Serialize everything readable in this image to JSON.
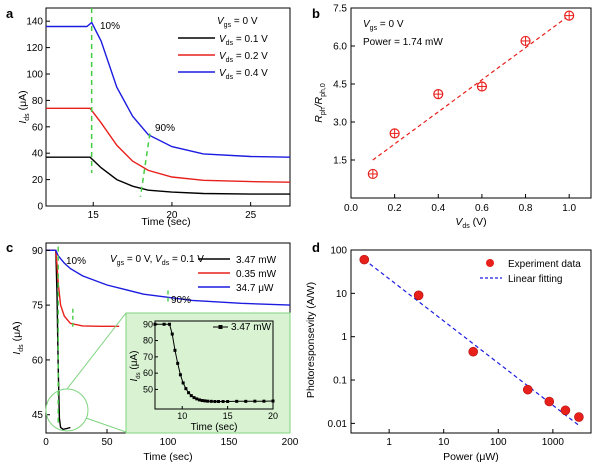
{
  "chart_data": [
    {
      "panel": "a",
      "type": "line",
      "xlabel": "Time (sec)",
      "ylabel": "I_ds (μA)",
      "xlim": [
        12,
        27.5
      ],
      "ylim": [
        0,
        150
      ],
      "xticks": [
        "15",
        "20",
        "25"
      ],
      "yticks": [
        "0",
        "20",
        "40",
        "60",
        "80",
        "100",
        "120",
        "140"
      ],
      "legend_title": "V_gs = 0 V",
      "legend_position": "top-right",
      "annotations": [
        "10%",
        "90%"
      ],
      "series": [
        {
          "name": "V_ds = 0.1 V",
          "color": "#000000",
          "x": [
            12,
            14.8,
            15.5,
            16.5,
            17.5,
            18.5,
            20,
            22,
            25,
            27.5
          ],
          "y": [
            37,
            37,
            29,
            20,
            15,
            12,
            10.5,
            9.5,
            9,
            9
          ]
        },
        {
          "name": "V_ds = 0.2 V",
          "color": "#e8201c",
          "x": [
            12,
            14.8,
            15.5,
            16.5,
            17.5,
            18.5,
            20,
            22,
            25,
            27.5
          ],
          "y": [
            74,
            74,
            63,
            46,
            34,
            27,
            22,
            19.5,
            18.5,
            18
          ]
        },
        {
          "name": "V_ds = 0.4 V",
          "color": "#1c1ce0",
          "x": [
            12,
            14.6,
            14.9,
            15.5,
            16.5,
            17.5,
            18.5,
            20,
            22,
            25,
            27.5
          ],
          "y": [
            136,
            136,
            139,
            125,
            90,
            68,
            54,
            45,
            39.5,
            37.5,
            37
          ]
        }
      ],
      "markers_10pct": [
        {
          "x": 14.9,
          "y": 150
        },
        {
          "x": 14.9,
          "y": 25
        }
      ],
      "markers_90pct": [
        {
          "x": 18.6,
          "y": 55
        },
        {
          "x": 18,
          "y": 7
        }
      ]
    },
    {
      "panel": "b",
      "type": "scatter",
      "xlabel": "V_ds (V)",
      "ylabel": "R_ph / R_ph,0",
      "xlim": [
        0,
        1.1
      ],
      "ylim": [
        0,
        7.5
      ],
      "xticks": [
        "0.0",
        "0.2",
        "0.4",
        "0.6",
        "0.8",
        "1.0"
      ],
      "yticks": [
        "1.5",
        "3.0",
        "4.5",
        "6.0",
        "7.5"
      ],
      "annotations": [
        "V_gs = 0 V",
        "Power = 1.74 mW"
      ],
      "series": [
        {
          "name": "data",
          "color": "#e8201c",
          "x": [
            0.1,
            0.2,
            0.4,
            0.6,
            0.8,
            1.0
          ],
          "y": [
            0.95,
            2.55,
            4.1,
            4.4,
            6.2,
            7.2
          ]
        }
      ],
      "fit": {
        "x": [
          0.1,
          1.0
        ],
        "y": [
          1.5,
          7.2
        ],
        "color": "#e8201c"
      }
    },
    {
      "panel": "c",
      "type": "line",
      "xlabel": "Time (sec)",
      "ylabel": "I_ds (μA)",
      "xlim": [
        0,
        200
      ],
      "ylim": [
        40,
        92
      ],
      "xticks": [
        "0",
        "50",
        "100",
        "150",
        "200"
      ],
      "yticks": [
        "45",
        "60",
        "75",
        "90"
      ],
      "legend_title": "V_gs = 0 V, V_ds = 0.1 V",
      "legend_position": "top-right",
      "annotations": [
        "10%",
        "90%"
      ],
      "series": [
        {
          "name": "3.47 mW",
          "color": "#000000",
          "x": [
            0,
            8,
            9,
            10,
            11,
            12,
            14,
            17,
            20
          ],
          "y": [
            90,
            90,
            78,
            58,
            44,
            41.5,
            41,
            41.2,
            41.5
          ]
        },
        {
          "name": "0.35 mW",
          "color": "#e8201c",
          "x": [
            0,
            8,
            9,
            10,
            12,
            15,
            20,
            30,
            45,
            60
          ],
          "y": [
            90,
            90,
            86,
            81,
            75,
            72,
            70,
            69.3,
            69.2,
            69.2
          ]
        },
        {
          "name": "34.7 μW",
          "color": "#1c1ce0",
          "x": [
            0,
            8,
            10,
            15,
            20,
            30,
            50,
            80,
            120,
            160,
            200
          ],
          "y": [
            90,
            90,
            88.5,
            86.5,
            85,
            83,
            80.5,
            78,
            76.3,
            75.5,
            75
          ]
        }
      ],
      "inset": {
        "xlabel": "Time (sec)",
        "ylabel": "I_ds (μA)",
        "xlim": [
          7,
          20
        ],
        "ylim": [
          38,
          92
        ],
        "xticks": [
          "10",
          "15",
          "20"
        ],
        "yticks": [
          "50",
          "60",
          "70",
          "80",
          "90"
        ],
        "legend": "3.47 mW",
        "series": {
          "color": "#000000",
          "x": [
            7,
            8,
            8.6,
            8.9,
            9.2,
            9.5,
            9.8,
            10.1,
            10.4,
            10.7,
            11.0,
            11.3,
            11.6,
            11.9,
            12.2,
            12.5,
            12.8,
            13.2,
            13.6,
            14,
            14.5,
            15,
            16,
            17,
            18,
            19,
            20
          ],
          "y": [
            90,
            90,
            90,
            84,
            74,
            66,
            59,
            54,
            50.5,
            48,
            46.2,
            45,
            44.2,
            43.6,
            43.2,
            43,
            42.8,
            42.7,
            42.6,
            42.6,
            42.6,
            42.6,
            42.7,
            42.7,
            42.8,
            42.8,
            42.9
          ]
        }
      }
    },
    {
      "panel": "d",
      "type": "scatter",
      "xlabel": "Power (μW)",
      "ylabel": "Photoresponsevity (A/W)",
      "x_scale": "log",
      "y_scale": "log",
      "xlim": [
        0.2,
        5000
      ],
      "ylim": [
        0.006,
        100
      ],
      "xticks": [
        "1",
        "10",
        "100",
        "1000"
      ],
      "yticks": [
        "0.01",
        "0.1",
        "1",
        "10",
        "100"
      ],
      "legend_position": "top-right",
      "series": [
        {
          "name": "Experiment data",
          "color": "#e8201c",
          "x": [
            0.35,
            3.47,
            34.7,
            347,
            860,
            1700,
            3000
          ],
          "y": [
            60,
            9,
            0.45,
            0.06,
            0.032,
            0.02,
            0.014
          ]
        }
      ],
      "fit": {
        "name": "Linear fitting",
        "color": "#1c1ce0",
        "x": [
          0.35,
          3000
        ],
        "y": [
          60,
          0.009
        ]
      }
    }
  ],
  "panels": {
    "a": {
      "label": "a",
      "legend_title": "V_gs = 0 V",
      "legend": [
        "V_ds = 0.1 V",
        "V_ds = 0.2 V",
        "V_ds = 0.4 V"
      ],
      "xlabel": "Time (sec)",
      "ylabel": "I_ds (μA)",
      "ann10": "10%",
      "ann90": "90%"
    },
    "b": {
      "label": "b",
      "ann1": "V_gs = 0 V",
      "ann2": "Power = 1.74 mW",
      "xlabel": "V_ds (V)",
      "ylabel": "R_ph / R_ph,0"
    },
    "c": {
      "label": "c",
      "legend_title": "V_gs = 0 V, V_ds = 0.1 V",
      "legend": [
        "3.47 mW",
        "0.35 mW",
        "34.7 μW"
      ],
      "xlabel": "Time (sec)",
      "ylabel": "I_ds (μA)",
      "ann10": "10%",
      "ann90": "90%"
    },
    "d": {
      "label": "d",
      "legend": [
        "Experiment data",
        "Linear fitting"
      ],
      "xlabel": "Power (μW)",
      "ylabel": "Photoresponsevity (A/W)"
    }
  },
  "colors": {
    "black": "#000000",
    "red": "#e8201c",
    "blue": "#1c1ce0",
    "green_dash": "#44cc44",
    "inset_bg": "#d8f2d2"
  }
}
